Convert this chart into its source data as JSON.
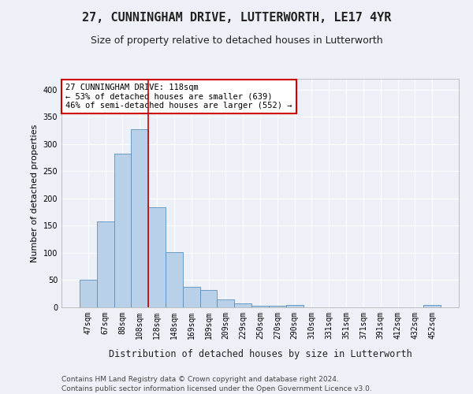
{
  "title": "27, CUNNINGHAM DRIVE, LUTTERWORTH, LE17 4YR",
  "subtitle": "Size of property relative to detached houses in Lutterworth",
  "xlabel": "Distribution of detached houses by size in Lutterworth",
  "ylabel": "Number of detached properties",
  "categories": [
    "47sqm",
    "67sqm",
    "88sqm",
    "108sqm",
    "128sqm",
    "148sqm",
    "169sqm",
    "189sqm",
    "209sqm",
    "229sqm",
    "250sqm",
    "270sqm",
    "290sqm",
    "310sqm",
    "331sqm",
    "351sqm",
    "371sqm",
    "391sqm",
    "412sqm",
    "432sqm",
    "452sqm"
  ],
  "values": [
    50,
    158,
    283,
    328,
    184,
    102,
    38,
    32,
    15,
    7,
    3,
    3,
    5,
    0,
    0,
    0,
    0,
    0,
    0,
    0,
    5
  ],
  "bar_color": "#b8d0e8",
  "bar_edge_color": "#5a8fc0",
  "vline_color": "#cc0000",
  "vline_x_pos": 3.5,
  "annotation_text": "27 CUNNINGHAM DRIVE: 118sqm\n← 53% of detached houses are smaller (639)\n46% of semi-detached houses are larger (552) →",
  "annotation_box_color": "#ffffff",
  "annotation_box_edge": "#cc0000",
  "ylim": [
    0,
    420
  ],
  "yticks": [
    0,
    50,
    100,
    150,
    200,
    250,
    300,
    350,
    400
  ],
  "footer_line1": "Contains HM Land Registry data © Crown copyright and database right 2024.",
  "footer_line2": "Contains public sector information licensed under the Open Government Licence v3.0.",
  "bg_color": "#edf1f7",
  "plot_bg_color": "#edf1f7",
  "grid_color": "#ffffff",
  "title_fontsize": 11,
  "subtitle_fontsize": 9,
  "axis_label_fontsize": 8,
  "tick_fontsize": 7,
  "annotation_fontsize": 7.5,
  "footer_fontsize": 6.5
}
